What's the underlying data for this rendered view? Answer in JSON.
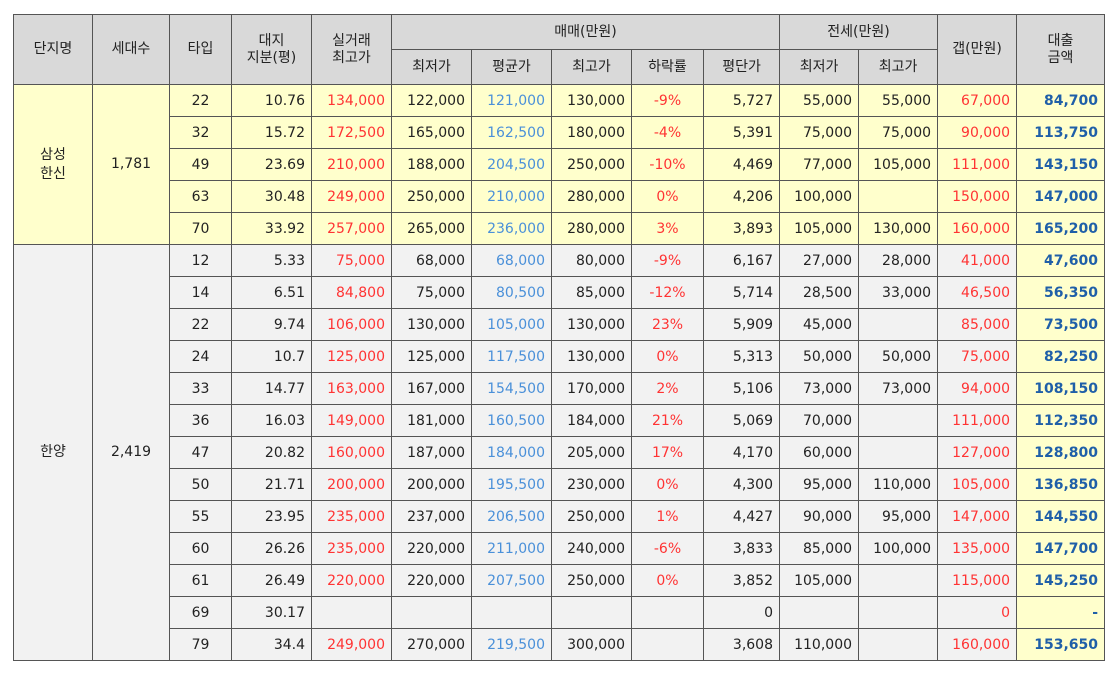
{
  "headers": {
    "complex": "단지명",
    "households": "세대수",
    "type": "타입",
    "land_share": "대지\n지분(평)",
    "real_max": "실거래\n최고가",
    "sale_group": "매매(만원)",
    "sale_min": "최저가",
    "sale_avg": "평균가",
    "sale_max": "최고가",
    "drop_rate": "하락률",
    "per_pyeong": "평단가",
    "jeonse_group": "전세(만원)",
    "jeonse_min": "최저가",
    "jeonse_max": "최고가",
    "gap": "갭(만원)",
    "loan": "대출\n금액"
  },
  "groups": [
    {
      "name": "삼성\n한신",
      "households": "1,781",
      "rows": [
        {
          "type": "22",
          "land": "10.76",
          "real": "134,000",
          "smin": "122,000",
          "savg": "121,000",
          "smax": "130,000",
          "drop": "-9%",
          "pp": "5,727",
          "jmin": "55,000",
          "jmax": "55,000",
          "gap": "67,000",
          "loan": "84,700"
        },
        {
          "type": "32",
          "land": "15.72",
          "real": "172,500",
          "smin": "165,000",
          "savg": "162,500",
          "smax": "180,000",
          "drop": "-4%",
          "pp": "5,391",
          "jmin": "75,000",
          "jmax": "75,000",
          "gap": "90,000",
          "loan": "113,750"
        },
        {
          "type": "49",
          "land": "23.69",
          "real": "210,000",
          "smin": "188,000",
          "savg": "204,500",
          "smax": "250,000",
          "drop": "-10%",
          "pp": "4,469",
          "jmin": "77,000",
          "jmax": "105,000",
          "gap": "111,000",
          "loan": "143,150"
        },
        {
          "type": "63",
          "land": "30.48",
          "real": "249,000",
          "smin": "250,000",
          "savg": "210,000",
          "smax": "280,000",
          "drop": "0%",
          "pp": "4,206",
          "jmin": "100,000",
          "jmax": "",
          "gap": "150,000",
          "loan": "147,000"
        },
        {
          "type": "70",
          "land": "33.92",
          "real": "257,000",
          "smin": "265,000",
          "savg": "236,000",
          "smax": "280,000",
          "drop": "3%",
          "pp": "3,893",
          "jmin": "105,000",
          "jmax": "130,000",
          "gap": "160,000",
          "loan": "165,200"
        }
      ]
    },
    {
      "name": "한양",
      "households": "2,419",
      "rows": [
        {
          "type": "12",
          "land": "5.33",
          "real": "75,000",
          "smin": "68,000",
          "savg": "68,000",
          "smax": "80,000",
          "drop": "-9%",
          "pp": "6,167",
          "jmin": "27,000",
          "jmax": "28,000",
          "gap": "41,000",
          "loan": "47,600"
        },
        {
          "type": "14",
          "land": "6.51",
          "real": "84,800",
          "smin": "75,000",
          "savg": "80,500",
          "smax": "85,000",
          "drop": "-12%",
          "pp": "5,714",
          "jmin": "28,500",
          "jmax": "33,000",
          "gap": "46,500",
          "loan": "56,350"
        },
        {
          "type": "22",
          "land": "9.74",
          "real": "106,000",
          "smin": "130,000",
          "savg": "105,000",
          "smax": "130,000",
          "drop": "23%",
          "pp": "5,909",
          "jmin": "45,000",
          "jmax": "",
          "gap": "85,000",
          "loan": "73,500"
        },
        {
          "type": "24",
          "land": "10.7",
          "real": "125,000",
          "smin": "125,000",
          "savg": "117,500",
          "smax": "130,000",
          "drop": "0%",
          "pp": "5,313",
          "jmin": "50,000",
          "jmax": "50,000",
          "gap": "75,000",
          "loan": "82,250"
        },
        {
          "type": "33",
          "land": "14.77",
          "real": "163,000",
          "smin": "167,000",
          "savg": "154,500",
          "smax": "170,000",
          "drop": "2%",
          "pp": "5,106",
          "jmin": "73,000",
          "jmax": "73,000",
          "gap": "94,000",
          "loan": "108,150"
        },
        {
          "type": "36",
          "land": "16.03",
          "real": "149,000",
          "smin": "181,000",
          "savg": "160,500",
          "smax": "184,000",
          "drop": "21%",
          "pp": "5,069",
          "jmin": "70,000",
          "jmax": "",
          "gap": "111,000",
          "loan": "112,350"
        },
        {
          "type": "47",
          "land": "20.82",
          "real": "160,000",
          "smin": "187,000",
          "savg": "184,000",
          "smax": "205,000",
          "drop": "17%",
          "pp": "4,170",
          "jmin": "60,000",
          "jmax": "",
          "gap": "127,000",
          "loan": "128,800"
        },
        {
          "type": "50",
          "land": "21.71",
          "real": "200,000",
          "smin": "200,000",
          "savg": "195,500",
          "smax": "230,000",
          "drop": "0%",
          "pp": "4,300",
          "jmin": "95,000",
          "jmax": "110,000",
          "gap": "105,000",
          "loan": "136,850"
        },
        {
          "type": "55",
          "land": "23.95",
          "real": "235,000",
          "smin": "237,000",
          "savg": "206,500",
          "smax": "250,000",
          "drop": "1%",
          "pp": "4,427",
          "jmin": "90,000",
          "jmax": "95,000",
          "gap": "147,000",
          "loan": "144,550"
        },
        {
          "type": "60",
          "land": "26.26",
          "real": "235,000",
          "smin": "220,000",
          "savg": "211,000",
          "smax": "240,000",
          "drop": "-6%",
          "pp": "3,833",
          "jmin": "85,000",
          "jmax": "100,000",
          "gap": "135,000",
          "loan": "147,700"
        },
        {
          "type": "61",
          "land": "26.49",
          "real": "220,000",
          "smin": "220,000",
          "savg": "207,500",
          "smax": "250,000",
          "drop": "0%",
          "pp": "3,852",
          "jmin": "105,000",
          "jmax": "",
          "gap": "115,000",
          "loan": "145,250"
        },
        {
          "type": "69",
          "land": "30.17",
          "real": "",
          "smin": "",
          "savg": "",
          "smax": "",
          "drop": "",
          "pp": "0",
          "jmin": "",
          "jmax": "",
          "gap": "0",
          "loan": "-"
        },
        {
          "type": "79",
          "land": "34.4",
          "real": "249,000",
          "smin": "270,000",
          "savg": "219,500",
          "smax": "300,000",
          "drop": "",
          "pp": "3,608",
          "jmin": "110,000",
          "jmax": "",
          "gap": "160,000",
          "loan": "153,650"
        }
      ]
    }
  ]
}
